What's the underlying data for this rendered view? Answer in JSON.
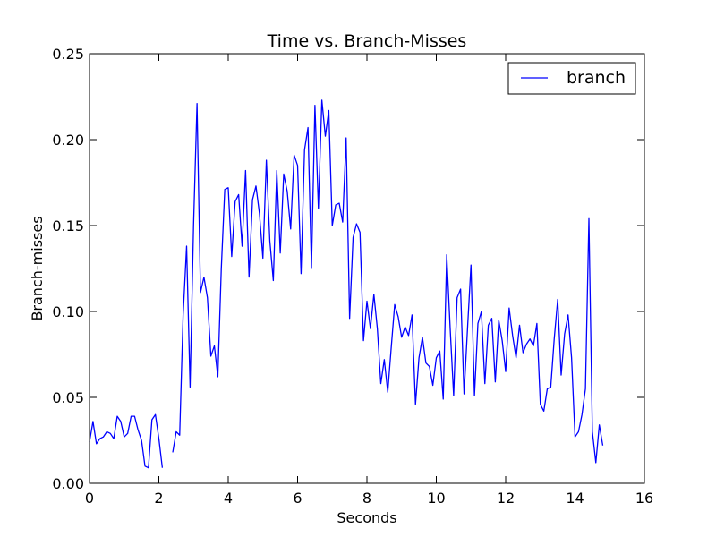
{
  "chart_data": {
    "type": "line",
    "title": "Time vs. Branch-Misses",
    "xlabel": "Seconds",
    "ylabel": "Branch-misses",
    "xlim": [
      0,
      16
    ],
    "ylim": [
      0,
      0.25
    ],
    "xticks": [
      0,
      2,
      4,
      6,
      8,
      10,
      12,
      14,
      16
    ],
    "xtick_labels": [
      "0",
      "2",
      "4",
      "6",
      "8",
      "10",
      "12",
      "14",
      "16"
    ],
    "yticks": [
      0,
      0.05,
      0.1,
      0.15,
      0.2,
      0.25
    ],
    "ytick_labels": [
      "0.00",
      "0.05",
      "0.10",
      "0.15",
      "0.20",
      "0.25"
    ],
    "grid": false,
    "legend_position": "top-right",
    "series": [
      {
        "name": "branch",
        "color": "#0000ff",
        "segments": [
          [
            [
              0.0,
              0.024
            ],
            [
              0.1,
              0.036
            ],
            [
              0.2,
              0.023
            ],
            [
              0.3,
              0.026
            ],
            [
              0.4,
              0.027
            ],
            [
              0.5,
              0.03
            ],
            [
              0.6,
              0.029
            ],
            [
              0.7,
              0.026
            ],
            [
              0.8,
              0.039
            ],
            [
              0.9,
              0.036
            ],
            [
              1.0,
              0.027
            ],
            [
              1.1,
              0.029
            ],
            [
              1.2,
              0.039
            ],
            [
              1.3,
              0.039
            ],
            [
              1.4,
              0.031
            ],
            [
              1.5,
              0.025
            ],
            [
              1.6,
              0.01
            ],
            [
              1.7,
              0.009
            ],
            [
              1.8,
              0.037
            ],
            [
              1.9,
              0.04
            ],
            [
              2.0,
              0.026
            ],
            [
              2.1,
              0.009
            ]
          ],
          [
            [
              2.4,
              0.018
            ],
            [
              2.5,
              0.03
            ],
            [
              2.6,
              0.028
            ],
            [
              2.7,
              0.098
            ],
            [
              2.8,
              0.138
            ],
            [
              2.9,
              0.056
            ],
            [
              3.0,
              0.15
            ],
            [
              3.1,
              0.221
            ],
            [
              3.2,
              0.111
            ],
            [
              3.3,
              0.12
            ],
            [
              3.4,
              0.108
            ],
            [
              3.5,
              0.074
            ],
            [
              3.6,
              0.08
            ],
            [
              3.7,
              0.062
            ],
            [
              3.8,
              0.125
            ],
            [
              3.9,
              0.171
            ],
            [
              4.0,
              0.172
            ],
            [
              4.1,
              0.132
            ],
            [
              4.2,
              0.164
            ],
            [
              4.3,
              0.168
            ],
            [
              4.4,
              0.138
            ],
            [
              4.5,
              0.182
            ],
            [
              4.6,
              0.12
            ],
            [
              4.7,
              0.165
            ],
            [
              4.8,
              0.173
            ],
            [
              4.9,
              0.157
            ],
            [
              5.0,
              0.131
            ],
            [
              5.1,
              0.188
            ],
            [
              5.2,
              0.141
            ],
            [
              5.3,
              0.118
            ],
            [
              5.4,
              0.182
            ],
            [
              5.5,
              0.134
            ],
            [
              5.6,
              0.18
            ],
            [
              5.7,
              0.17
            ],
            [
              5.8,
              0.148
            ],
            [
              5.9,
              0.191
            ],
            [
              6.0,
              0.185
            ],
            [
              6.1,
              0.122
            ],
            [
              6.2,
              0.194
            ],
            [
              6.3,
              0.207
            ],
            [
              6.4,
              0.125
            ],
            [
              6.5,
              0.22
            ],
            [
              6.6,
              0.16
            ],
            [
              6.7,
              0.223
            ],
            [
              6.8,
              0.202
            ],
            [
              6.9,
              0.217
            ],
            [
              7.0,
              0.15
            ],
            [
              7.1,
              0.162
            ],
            [
              7.2,
              0.163
            ],
            [
              7.3,
              0.152
            ],
            [
              7.4,
              0.201
            ],
            [
              7.5,
              0.096
            ],
            [
              7.6,
              0.143
            ],
            [
              7.7,
              0.151
            ],
            [
              7.8,
              0.146
            ],
            [
              7.9,
              0.083
            ],
            [
              8.0,
              0.106
            ],
            [
              8.1,
              0.09
            ],
            [
              8.2,
              0.11
            ],
            [
              8.3,
              0.09
            ],
            [
              8.4,
              0.058
            ],
            [
              8.5,
              0.072
            ],
            [
              8.6,
              0.053
            ],
            [
              8.7,
              0.079
            ],
            [
              8.8,
              0.104
            ],
            [
              8.9,
              0.097
            ],
            [
              9.0,
              0.085
            ],
            [
              9.1,
              0.091
            ],
            [
              9.2,
              0.086
            ],
            [
              9.3,
              0.098
            ],
            [
              9.4,
              0.046
            ],
            [
              9.5,
              0.073
            ],
            [
              9.6,
              0.085
            ],
            [
              9.7,
              0.07
            ],
            [
              9.8,
              0.068
            ],
            [
              9.9,
              0.057
            ],
            [
              10.0,
              0.073
            ],
            [
              10.1,
              0.077
            ],
            [
              10.2,
              0.049
            ],
            [
              10.3,
              0.133
            ],
            [
              10.4,
              0.09
            ],
            [
              10.5,
              0.051
            ],
            [
              10.6,
              0.108
            ],
            [
              10.7,
              0.113
            ],
            [
              10.8,
              0.052
            ],
            [
              10.9,
              0.09
            ],
            [
              11.0,
              0.127
            ],
            [
              11.1,
              0.051
            ],
            [
              11.2,
              0.093
            ],
            [
              11.3,
              0.1
            ],
            [
              11.4,
              0.058
            ],
            [
              11.5,
              0.092
            ],
            [
              11.6,
              0.096
            ],
            [
              11.7,
              0.059
            ],
            [
              11.8,
              0.095
            ],
            [
              11.9,
              0.083
            ],
            [
              12.0,
              0.065
            ],
            [
              12.1,
              0.102
            ],
            [
              12.2,
              0.086
            ],
            [
              12.3,
              0.073
            ],
            [
              12.4,
              0.092
            ],
            [
              12.5,
              0.076
            ],
            [
              12.6,
              0.081
            ],
            [
              12.7,
              0.084
            ],
            [
              12.8,
              0.08
            ],
            [
              12.9,
              0.093
            ],
            [
              13.0,
              0.046
            ],
            [
              13.1,
              0.042
            ],
            [
              13.2,
              0.055
            ],
            [
              13.3,
              0.056
            ],
            [
              13.4,
              0.084
            ],
            [
              13.5,
              0.107
            ],
            [
              13.6,
              0.063
            ],
            [
              13.7,
              0.087
            ],
            [
              13.8,
              0.098
            ],
            [
              13.9,
              0.073
            ],
            [
              14.0,
              0.027
            ],
            [
              14.1,
              0.03
            ],
            [
              14.2,
              0.04
            ],
            [
              14.3,
              0.055
            ],
            [
              14.4,
              0.154
            ],
            [
              14.5,
              0.03
            ],
            [
              14.6,
              0.012
            ],
            [
              14.7,
              0.034
            ],
            [
              14.8,
              0.022
            ]
          ]
        ]
      }
    ]
  }
}
